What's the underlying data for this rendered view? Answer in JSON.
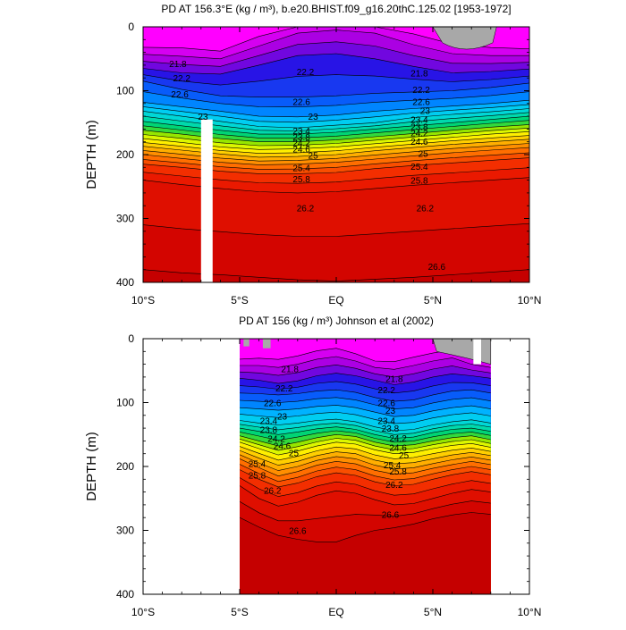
{
  "chart_data": [
    {
      "type": "contour",
      "title": "PD AT 156.3°E (kg / m³), b.e20.BHIST.f09_g16.20thC.125.02 [1953-1972]",
      "xlabel": "",
      "ylabel": "DEPTH (m)",
      "xlim": [
        -10,
        10
      ],
      "ylim": [
        0,
        400
      ],
      "y_inverted": true,
      "x_ticks": [
        {
          "value": -10,
          "label": "10°S"
        },
        {
          "value": -5,
          "label": "5°S"
        },
        {
          "value": 0,
          "label": "EQ"
        },
        {
          "value": 5,
          "label": "5°N"
        },
        {
          "value": 10,
          "label": "10°N"
        }
      ],
      "y_ticks": [
        {
          "value": 0,
          "label": "0"
        },
        {
          "value": 100,
          "label": "100"
        },
        {
          "value": 200,
          "label": "200"
        },
        {
          "value": 300,
          "label": "300"
        },
        {
          "value": 400,
          "label": "400"
        }
      ],
      "contour_levels": [
        21.6,
        21.8,
        22.0,
        22.2,
        22.4,
        22.6,
        22.8,
        23.0,
        23.2,
        23.4,
        23.6,
        23.8,
        24.0,
        24.2,
        24.4,
        24.6,
        24.8,
        25.0,
        25.2,
        25.4,
        25.6,
        25.8,
        26.0,
        26.2,
        26.4,
        26.6
      ],
      "data_extent": [
        -10,
        10
      ],
      "missing_band": [
        -7,
        -6.4
      ],
      "isopycnal_depths": {
        "x": [
          -10,
          -8,
          -6,
          -4,
          -2,
          0,
          2,
          4,
          6,
          8,
          10
        ],
        "21.8": [
          43,
          46,
          50,
          30,
          10,
          5,
          10,
          28,
          42,
          45,
          45
        ],
        "22.2": [
          65,
          72,
          74,
          60,
          45,
          42,
          50,
          62,
          72,
          70,
          66
        ],
        "22.6": [
          85,
          98,
          108,
          110,
          110,
          108,
          104,
          102,
          100,
          95,
          88
        ],
        "23.0": [
          118,
          125,
          132,
          140,
          141,
          138,
          132,
          128,
          124,
          120,
          115
        ],
        "23.4": [
          132,
          140,
          148,
          156,
          158,
          154,
          150,
          142,
          137,
          133,
          128
        ],
        "23.8": [
          148,
          155,
          162,
          168,
          168,
          165,
          160,
          155,
          150,
          145,
          140
        ],
        "24.2": [
          162,
          168,
          175,
          180,
          180,
          177,
          172,
          167,
          162,
          157,
          153
        ],
        "24.6": [
          175,
          181,
          188,
          192,
          191,
          188,
          183,
          178,
          173,
          168,
          164
        ],
        "25.0": [
          187,
          193,
          199,
          204,
          203,
          200,
          194,
          189,
          184,
          180,
          176
        ],
        "25.4": [
          200,
          206,
          212,
          216,
          215,
          212,
          207,
          202,
          197,
          193,
          189
        ],
        "25.8": [
          215,
          220,
          226,
          230,
          230,
          228,
          222,
          217,
          213,
          209,
          205
        ],
        "26.2": [
          240,
          247,
          253,
          258,
          260,
          258,
          253,
          248,
          244,
          240,
          236
        ],
        "26.6": [
          380,
          385,
          388,
          392,
          396,
          398,
          395,
          392,
          388,
          384,
          380
        ]
      },
      "contour_labels": [
        {
          "text": "21.8",
          "x": -8.2,
          "y": 57
        },
        {
          "text": "22.2",
          "x": -8.0,
          "y": 80
        },
        {
          "text": "22.6",
          "x": -8.1,
          "y": 105
        },
        {
          "text": "23",
          "x": -6.9,
          "y": 140
        },
        {
          "text": "22.2",
          "x": -1.6,
          "y": 70
        },
        {
          "text": "22.6",
          "x": -1.8,
          "y": 117
        },
        {
          "text": "23",
          "x": -1.2,
          "y": 140
        },
        {
          "text": "23.4",
          "x": -1.8,
          "y": 162
        },
        {
          "text": "23.8",
          "x": -1.8,
          "y": 172
        },
        {
          "text": "24.2",
          "x": -1.8,
          "y": 181
        },
        {
          "text": "24.6",
          "x": -1.8,
          "y": 191
        },
        {
          "text": "25",
          "x": -1.2,
          "y": 201
        },
        {
          "text": "25.4",
          "x": -1.8,
          "y": 220
        },
        {
          "text": "25.8",
          "x": -1.8,
          "y": 238
        },
        {
          "text": "26.2",
          "x": -1.6,
          "y": 283
        },
        {
          "text": "21.8",
          "x": 4.3,
          "y": 72
        },
        {
          "text": "22.2",
          "x": 4.4,
          "y": 98
        },
        {
          "text": "22.6",
          "x": 4.4,
          "y": 117
        },
        {
          "text": "23",
          "x": 4.6,
          "y": 131
        },
        {
          "text": "23.4",
          "x": 4.3,
          "y": 145
        },
        {
          "text": "23.8",
          "x": 4.3,
          "y": 156
        },
        {
          "text": "24.2",
          "x": 4.3,
          "y": 166
        },
        {
          "text": "24.6",
          "x": 4.3,
          "y": 179
        },
        {
          "text": "25",
          "x": 4.5,
          "y": 198
        },
        {
          "text": "25.4",
          "x": 4.3,
          "y": 218
        },
        {
          "text": "25.8",
          "x": 4.3,
          "y": 240
        },
        {
          "text": "26.2",
          "x": 4.6,
          "y": 283
        },
        {
          "text": "26.6",
          "x": 5.2,
          "y": 375
        }
      ],
      "grid": false,
      "legend": "none"
    },
    {
      "type": "contour",
      "title": "PD AT 156 (kg / m³) Johnson et al (2002)",
      "xlabel": "",
      "ylabel": "DEPTH (m)",
      "xlim": [
        -10,
        10
      ],
      "ylim": [
        0,
        400
      ],
      "y_inverted": true,
      "x_ticks": [
        {
          "value": -10,
          "label": "10°S"
        },
        {
          "value": -5,
          "label": "5°S"
        },
        {
          "value": 0,
          "label": "EQ"
        },
        {
          "value": 5,
          "label": "5°N"
        },
        {
          "value": 10,
          "label": "10°N"
        }
      ],
      "y_ticks": [
        {
          "value": 0,
          "label": "0"
        },
        {
          "value": 100,
          "label": "100"
        },
        {
          "value": 200,
          "label": "200"
        },
        {
          "value": 300,
          "label": "300"
        },
        {
          "value": 400,
          "label": "400"
        }
      ],
      "contour_levels": [
        21.6,
        21.8,
        22.0,
        22.2,
        22.4,
        22.6,
        22.8,
        23.0,
        23.2,
        23.4,
        23.6,
        23.8,
        24.0,
        24.2,
        24.4,
        24.6,
        24.8,
        25.0,
        25.2,
        25.4,
        25.6,
        25.8,
        26.0,
        26.2,
        26.4,
        26.6
      ],
      "data_extent": [
        -5,
        8
      ],
      "isopycnal_depths": {
        "x": [
          -5,
          -4,
          -3,
          -2,
          -1,
          0,
          1,
          2,
          3,
          4,
          5,
          6,
          7,
          8
        ],
        "21.8": [
          42,
          42,
          45,
          40,
          32,
          28,
          35,
          45,
          48,
          42,
          35,
          30,
          40,
          45
        ],
        "22.2": [
          62,
          65,
          70,
          66,
          58,
          54,
          58,
          65,
          72,
          68,
          60,
          55,
          58,
          62
        ],
        "22.6": [
          85,
          86,
          88,
          86,
          82,
          80,
          84,
          92,
          98,
          96,
          88,
          82,
          80,
          85
        ],
        "23.0": [
          108,
          110,
          112,
          110,
          106,
          104,
          108,
          115,
          122,
          120,
          113,
          108,
          105,
          110
        ],
        "23.4": [
          128,
          132,
          135,
          132,
          128,
          126,
          130,
          138,
          144,
          142,
          135,
          130,
          127,
          132
        ],
        "23.8": [
          140,
          145,
          150,
          146,
          141,
          138,
          142,
          150,
          156,
          154,
          147,
          142,
          140,
          145
        ],
        "24.2": [
          152,
          160,
          168,
          162,
          155,
          150,
          153,
          162,
          168,
          166,
          160,
          155,
          152,
          158
        ],
        "24.6": [
          162,
          172,
          182,
          176,
          168,
          162,
          165,
          174,
          180,
          178,
          172,
          167,
          164,
          170
        ],
        "25.0": [
          175,
          187,
          198,
          192,
          183,
          177,
          180,
          190,
          196,
          194,
          188,
          182,
          178,
          183
        ],
        "25.4": [
          188,
          202,
          215,
          208,
          198,
          192,
          196,
          206,
          212,
          210,
          203,
          197,
          192,
          197
        ],
        "25.8": [
          205,
          220,
          232,
          226,
          216,
          210,
          214,
          224,
          230,
          228,
          220,
          213,
          208,
          213
        ],
        "26.2": [
          230,
          250,
          262,
          256,
          245,
          238,
          242,
          252,
          260,
          258,
          250,
          242,
          236,
          240
        ],
        "26.6": [
          280,
          295,
          308,
          314,
          318,
          318,
          308,
          300,
          296,
          290,
          282,
          276,
          272,
          275
        ]
      },
      "contour_labels": [
        {
          "text": "21.8",
          "x": -2.4,
          "y": 47
        },
        {
          "text": "22.2",
          "x": -2.7,
          "y": 77
        },
        {
          "text": "22.6",
          "x": -3.3,
          "y": 100
        },
        {
          "text": "23",
          "x": -2.8,
          "y": 121
        },
        {
          "text": "23.4",
          "x": -3.5,
          "y": 128
        },
        {
          "text": "23.8",
          "x": -3.5,
          "y": 142
        },
        {
          "text": "24.2",
          "x": -3.1,
          "y": 156
        },
        {
          "text": "24.6",
          "x": -2.8,
          "y": 167
        },
        {
          "text": "25",
          "x": -2.2,
          "y": 178
        },
        {
          "text": "25.4",
          "x": -4.1,
          "y": 195
        },
        {
          "text": "25.8",
          "x": -4.1,
          "y": 213
        },
        {
          "text": "26.2",
          "x": -3.3,
          "y": 237
        },
        {
          "text": "26.6",
          "x": -2.0,
          "y": 300
        },
        {
          "text": "21.8",
          "x": 3.0,
          "y": 62
        },
        {
          "text": "22.2",
          "x": 2.6,
          "y": 80
        },
        {
          "text": "22.6",
          "x": 2.6,
          "y": 100
        },
        {
          "text": "23",
          "x": 2.8,
          "y": 112
        },
        {
          "text": "23.4",
          "x": 2.6,
          "y": 128
        },
        {
          "text": "23.8",
          "x": 2.8,
          "y": 140
        },
        {
          "text": "24.2",
          "x": 3.2,
          "y": 155
        },
        {
          "text": "24.6",
          "x": 3.2,
          "y": 170
        },
        {
          "text": "25",
          "x": 3.5,
          "y": 182
        },
        {
          "text": "25.4",
          "x": 2.9,
          "y": 197
        },
        {
          "text": "25.8",
          "x": 3.2,
          "y": 207
        },
        {
          "text": "26.2",
          "x": 3.0,
          "y": 228
        },
        {
          "text": "26.6",
          "x": 2.8,
          "y": 275
        }
      ],
      "grid": false,
      "legend": "none"
    }
  ]
}
